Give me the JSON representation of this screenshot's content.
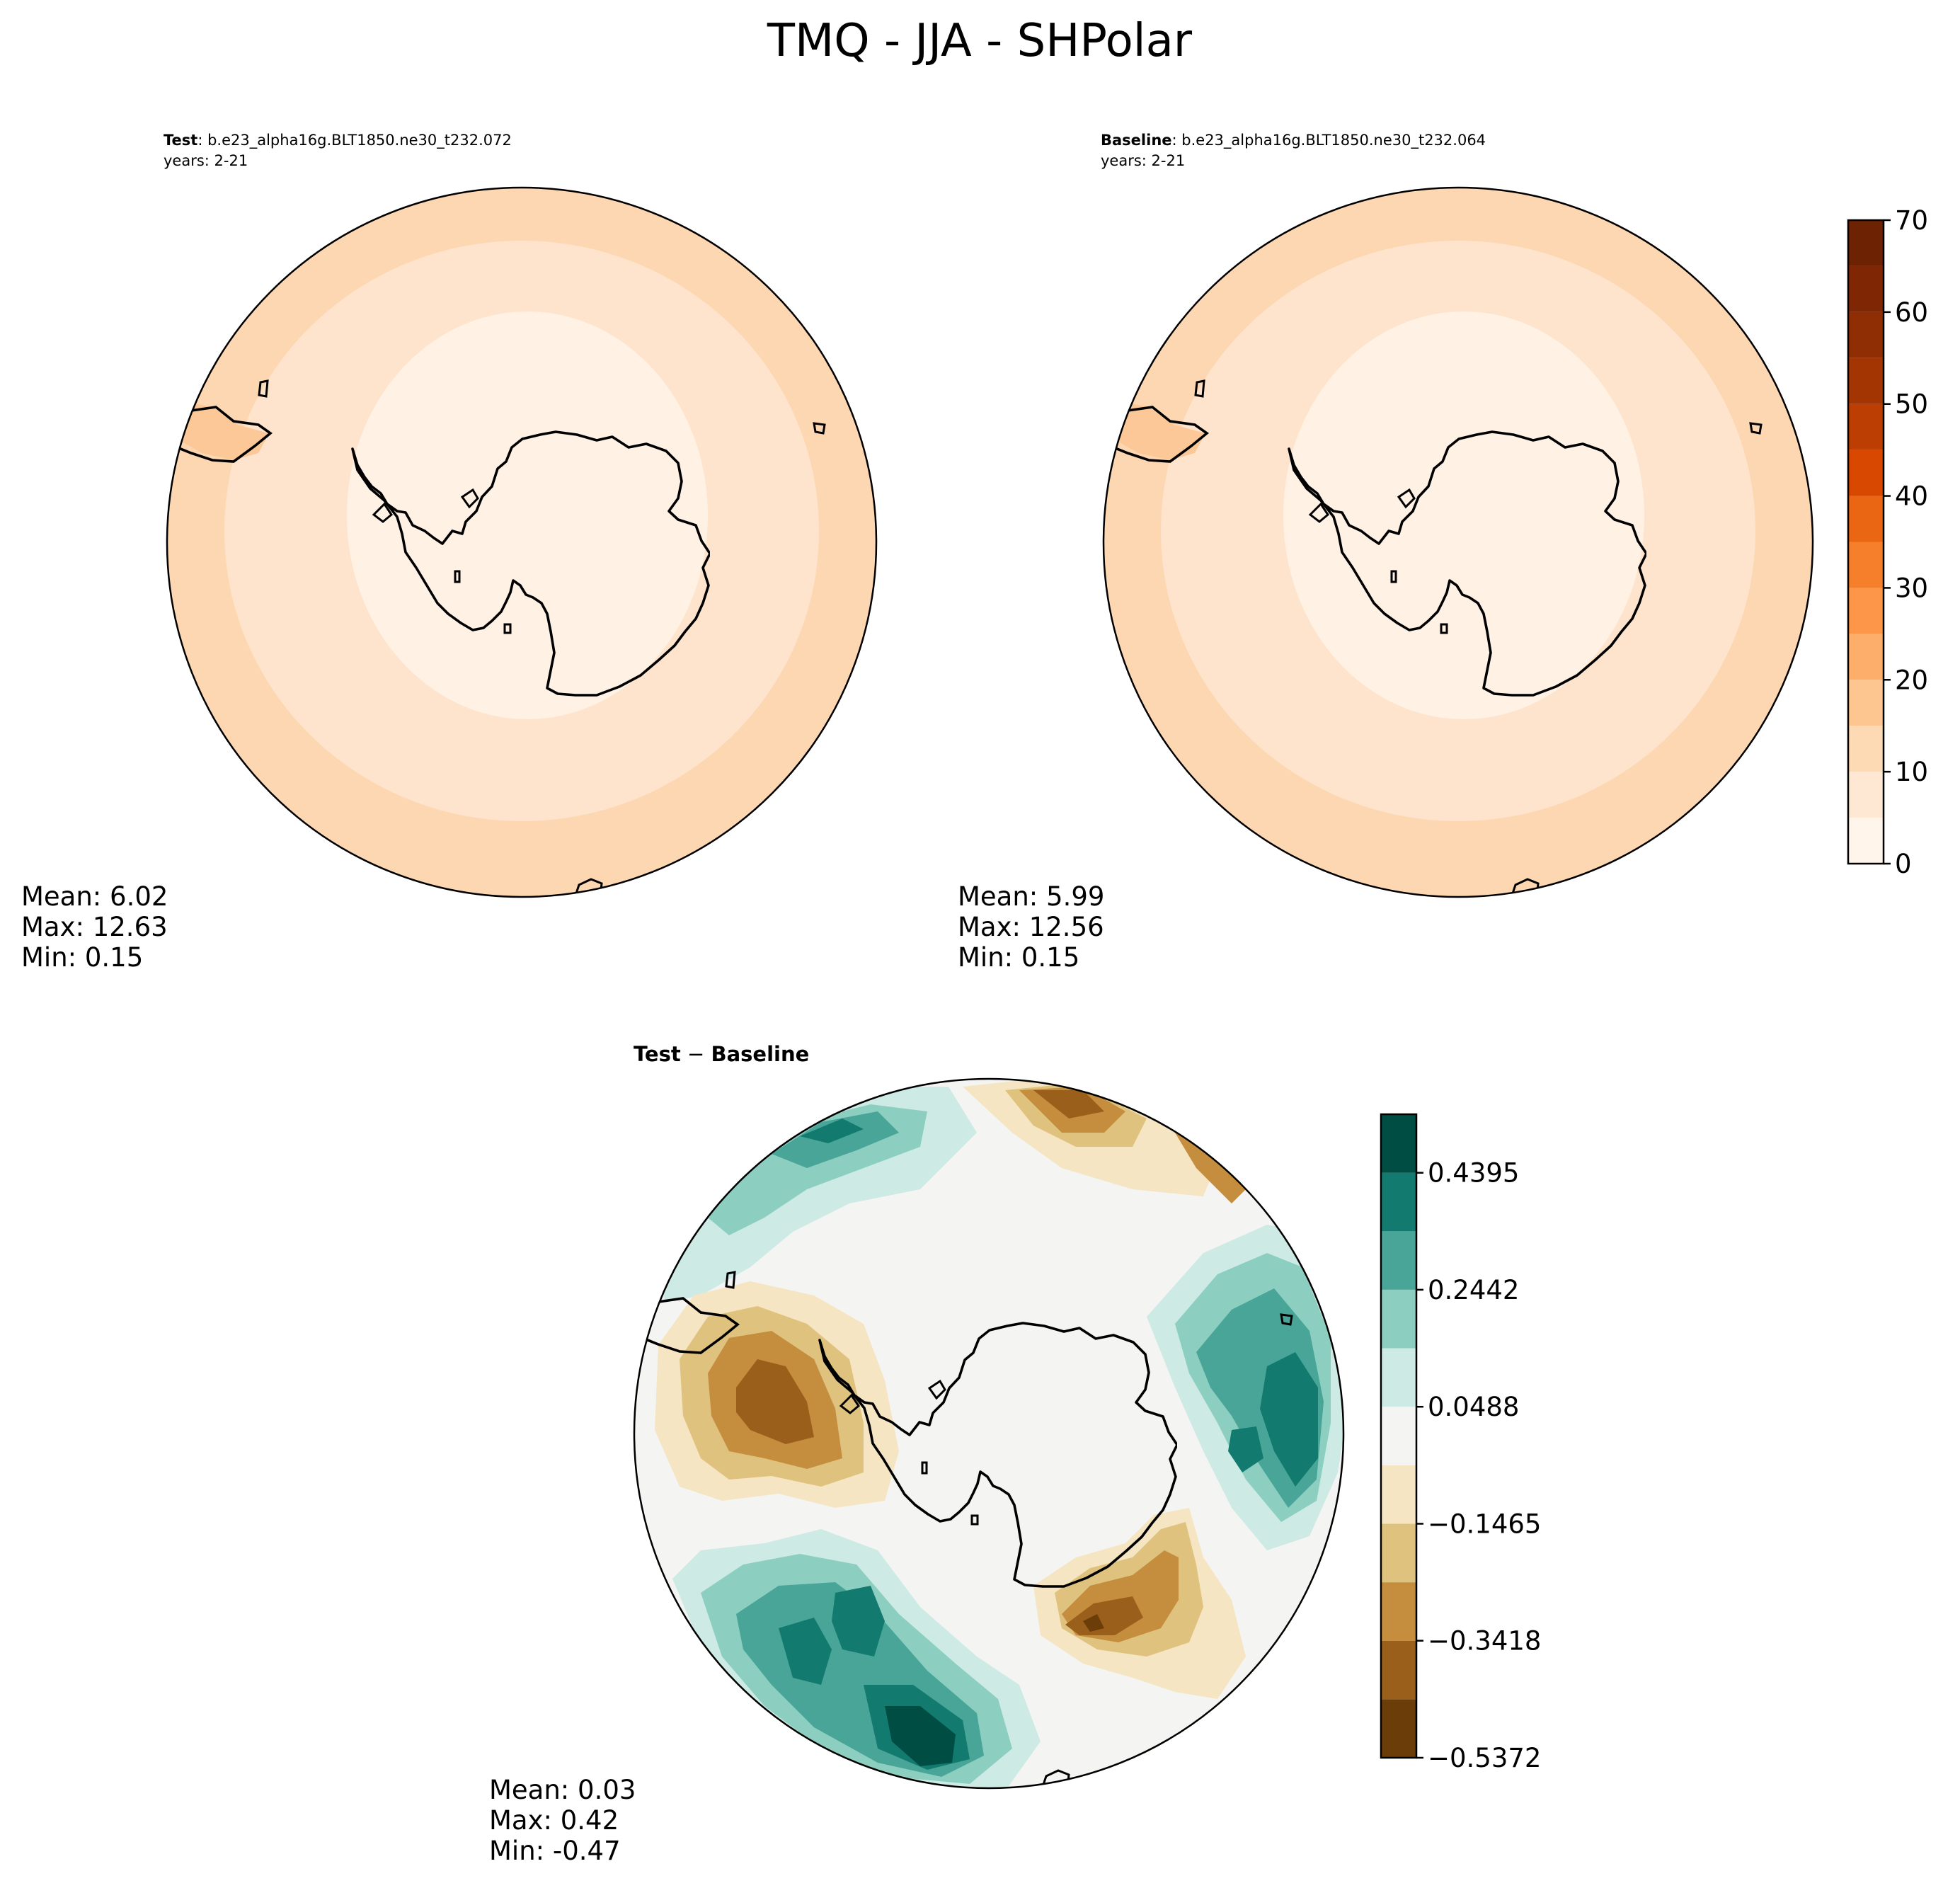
{
  "figure": {
    "title": "TMQ - JJA - SHPolar"
  },
  "chart_data": [
    {
      "type": "heatmap",
      "panel": "test",
      "header_bold": "Test",
      "header_case": ": b.e23_alpha16g.BLT1850.ne30_t232.072",
      "header_years": "years: 2-21",
      "stats": {
        "mean": "Mean:  6.02",
        "max": "Max: 12.63",
        "min": "Min:  0.15"
      },
      "field_bands": [
        2.5,
        7.5,
        12.5
      ],
      "colormap": "Oranges"
    },
    {
      "type": "heatmap",
      "panel": "baseline",
      "header_bold": "Baseline",
      "header_case": ": b.e23_alpha16g.BLT1850.ne30_t232.064",
      "header_years": "years: 2-21",
      "stats": {
        "mean": "Mean:  5.99",
        "max": "Max: 12.56",
        "min": "Min:  0.15"
      },
      "field_bands": [
        2.5,
        7.5,
        12.5
      ],
      "colormap": "Oranges",
      "colorbar": {
        "levels": [
          0,
          5,
          10,
          15,
          20,
          25,
          30,
          35,
          40,
          45,
          50,
          55,
          60,
          65,
          70
        ],
        "tick_labels": [
          "0",
          "10",
          "20",
          "30",
          "40",
          "50",
          "60",
          "70"
        ],
        "colors": [
          "#fff5eb",
          "#fee8d3",
          "#fdd9b4",
          "#fdc590",
          "#fdae6b",
          "#fd9649",
          "#f67f2c",
          "#ea6612",
          "#d94801",
          "#bd3e02",
          "#a33503",
          "#8f2d04",
          "#7f2704",
          "#6d2204"
        ]
      }
    },
    {
      "type": "heatmap",
      "panel": "difference",
      "header_bold": "Test",
      "header_minus": " − ",
      "header_bold2": "Baseline",
      "stats": {
        "mean": "Mean:  0.03",
        "max": "Max:  0.42",
        "min": "Min: -0.47"
      },
      "colormap": "BrBG",
      "colorbar": {
        "levels": [
          -0.5372,
          -0.4395,
          -0.3418,
          -0.2442,
          -0.1465,
          -0.0488,
          0.0488,
          0.1465,
          0.2442,
          0.3418,
          0.4395,
          0.5372
        ],
        "tick_labels": [
          "−0.5372",
          "−0.3418",
          "−0.1465",
          "0.0488",
          "0.2442",
          "0.4395"
        ],
        "colors": [
          "#6b3e09",
          "#9a5f1a",
          "#c58d3e",
          "#dfc27d",
          "#f5e5c3",
          "#f4f4f2",
          "#cdeae5",
          "#8ccfc1",
          "#48a598",
          "#137a70",
          "#004e43"
        ]
      }
    }
  ]
}
